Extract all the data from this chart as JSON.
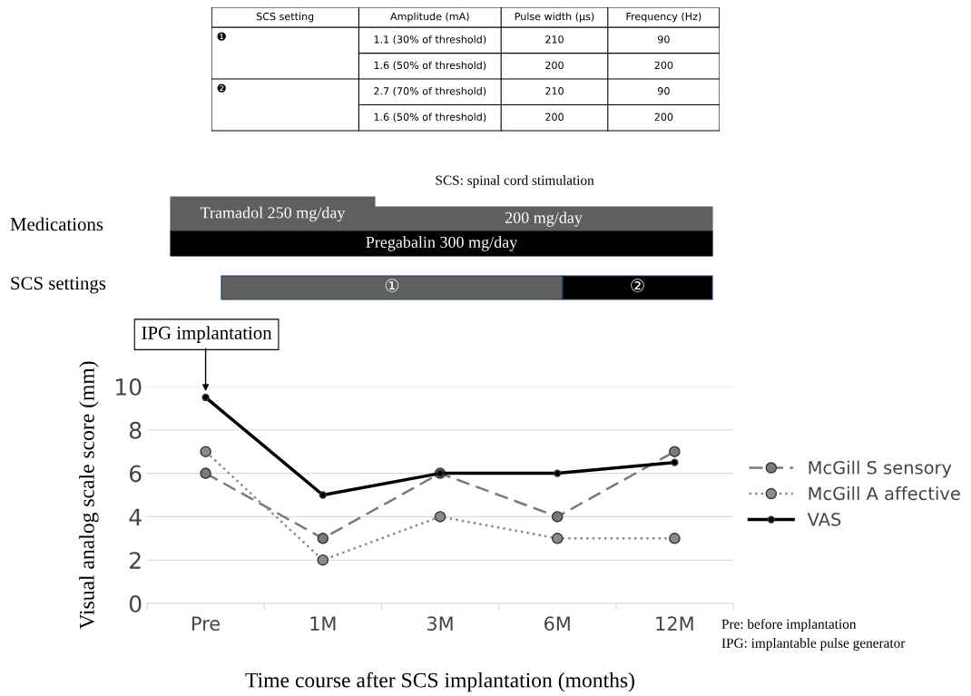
{
  "chart_data": [
    {
      "type": "other",
      "categories": [
        "SCS setting",
        "Amplitude (mA)",
        "Pulse width (µs)",
        "Frequency (Hz)"
      ],
      "y_categories": [
        "❶",
        "❷"
      ],
      "cell_labels": [
        [
          "1.1 (30% of threshold)",
          "210",
          "90"
        ],
        [
          "1.6 (50% of threshold)",
          "200",
          "200"
        ],
        [
          "2.7 (70% of threshold)",
          "210",
          "90"
        ],
        [
          "1.6 (50% of threshold)",
          "200",
          "200"
        ]
      ],
      "annotations": [
        "SCS: spinal cord stimulation"
      ]
    },
    {
      "type": "other",
      "categories": [
        "Medications",
        "SCS settings"
      ],
      "annotations": [
        "Tramadol 250 mg/day",
        "200 mg/day",
        "Pregabalin 300 mg/day",
        "①",
        "②"
      ],
      "colors": [
        "#5f5f5f",
        "#5f5f5f",
        "#000000",
        "#5f5f5f",
        "#000000"
      ]
    },
    {
      "type": "line",
      "categories": [
        "Pre",
        "1M",
        "3M",
        "6M",
        "12M"
      ],
      "xlabel": "Time course after SCS implantation (months)",
      "ylabel": "Visual analog scale score (mm)",
      "ylim": [
        0,
        10
      ],
      "yticks": [
        0,
        2,
        4,
        6,
        8,
        10
      ],
      "grid": "y",
      "legend": "right",
      "marker": "circle",
      "series": [
        {
          "name": "McGill S sensory",
          "color": "#7a7a7a",
          "line_style": "dashed",
          "values": [
            6,
            3,
            6,
            4,
            7
          ]
        },
        {
          "name": "McGill A affective",
          "color": "#8a8a8a",
          "line_style": "dotted",
          "values": [
            7,
            2,
            4,
            3,
            3
          ]
        },
        {
          "name": "VAS",
          "color": "#000000",
          "line_style": "solid",
          "values": [
            9.5,
            5,
            6,
            6,
            6.5
          ]
        }
      ],
      "annotations": [
        {
          "text": "IPG implantation",
          "x": "Pre",
          "y": 9.5
        },
        "Pre: before implantation",
        "IPG: implantable pulse generator"
      ]
    }
  ]
}
